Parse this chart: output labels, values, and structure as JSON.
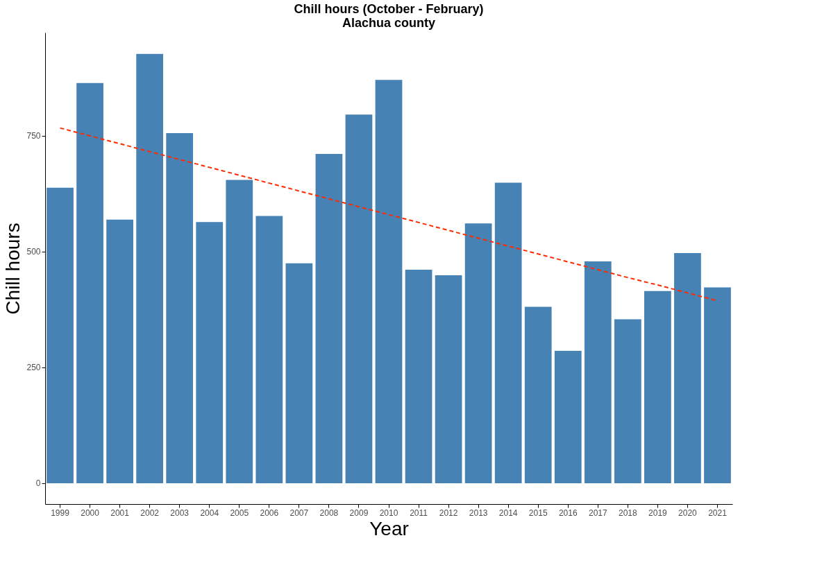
{
  "chart_data": {
    "type": "bar",
    "title": "Chill hours (October - February)",
    "subtitle": "Alachua county",
    "xlabel": "Year",
    "ylabel": "Chill hours",
    "categories": [
      "1999",
      "2000",
      "2001",
      "2002",
      "2003",
      "2004",
      "2005",
      "2006",
      "2007",
      "2008",
      "2009",
      "2010",
      "2011",
      "2012",
      "2013",
      "2014",
      "2015",
      "2016",
      "2017",
      "2018",
      "2019",
      "2020",
      "2021"
    ],
    "series": [
      {
        "color": "#4682b4",
        "values": [
          638,
          864,
          569,
          927,
          756,
          564,
          655,
          577,
          475,
          711,
          796,
          871,
          461,
          449,
          561,
          649,
          381,
          286,
          479,
          354,
          415,
          497,
          423
        ]
      },
      {
        "type": "line",
        "color": "#ff2a00",
        "line_style": "dashed",
        "values": [
          767,
          750,
          733,
          716,
          699,
          682,
          665,
          648,
          631,
          614,
          597,
          580,
          563,
          546,
          529,
          512,
          495,
          478,
          461,
          444,
          428,
          411,
          394
        ]
      }
    ],
    "ylim": [
      -45,
      973
    ],
    "yticks": [
      0,
      250,
      500,
      750
    ],
    "grid": false,
    "legend": false
  }
}
